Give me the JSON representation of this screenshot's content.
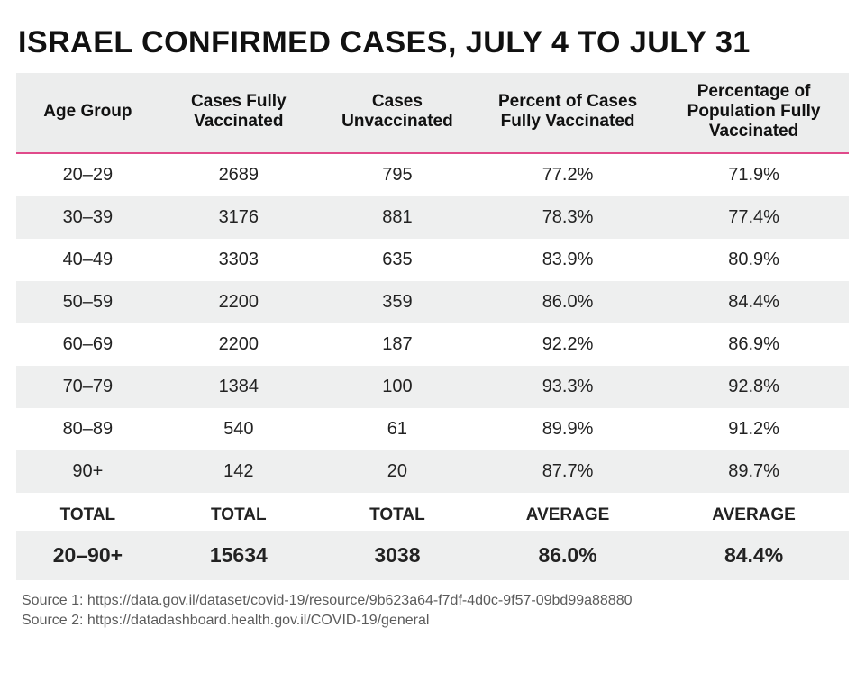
{
  "title": "ISRAEL CONFIRMED CASES, JULY 4 TO JULY 31",
  "table": {
    "type": "table",
    "background_color": "#ffffff",
    "header_background": "#eceded",
    "stripe_color": "#eeefef",
    "accent_rule_color": "#e04a8b",
    "header_fontsize": 19,
    "cell_fontsize": 20,
    "summary_fontsize": 23,
    "columns": [
      "Age Group",
      "Cases Fully Vaccinated",
      "Cases Unvaccinated",
      "Percent of Cases Fully Vaccinated",
      "Percentage of Population Fully Vaccinated"
    ],
    "rows": [
      {
        "age": "20–29",
        "vacc": "2689",
        "unvacc": "795",
        "pct_cases": "77.2%",
        "pct_pop": "71.9%"
      },
      {
        "age": "30–39",
        "vacc": "3176",
        "unvacc": "881",
        "pct_cases": "78.3%",
        "pct_pop": "77.4%"
      },
      {
        "age": "40–49",
        "vacc": "3303",
        "unvacc": "635",
        "pct_cases": "83.9%",
        "pct_pop": "80.9%"
      },
      {
        "age": "50–59",
        "vacc": "2200",
        "unvacc": "359",
        "pct_cases": "86.0%",
        "pct_pop": "84.4%"
      },
      {
        "age": "60–69",
        "vacc": "2200",
        "unvacc": "187",
        "pct_cases": "92.2%",
        "pct_pop": "86.9%"
      },
      {
        "age": "70–79",
        "vacc": "1384",
        "unvacc": "100",
        "pct_cases": "93.3%",
        "pct_pop": "92.8%"
      },
      {
        "age": "80–89",
        "vacc": "540",
        "unvacc": "61",
        "pct_cases": "89.9%",
        "pct_pop": "91.2%"
      },
      {
        "age": "90+",
        "vacc": "142",
        "unvacc": "20",
        "pct_cases": "87.7%",
        "pct_pop": "89.7%"
      }
    ],
    "summary_labels": {
      "age": "TOTAL",
      "vacc": "TOTAL",
      "unvacc": "TOTAL",
      "pct_cases": "AVERAGE",
      "pct_pop": "AVERAGE"
    },
    "summary": {
      "age": "20–90+",
      "vacc": "15634",
      "unvacc": "3038",
      "pct_cases": "86.0%",
      "pct_pop": "84.4%"
    }
  },
  "sources": {
    "line1": "Source 1: https://data.gov.il/dataset/covid-19/resource/9b623a64-f7df-4d0c-9f57-09bd99a88880",
    "line2": "Source 2: https://datadashboard.health.gov.il/COVID-19/general"
  }
}
